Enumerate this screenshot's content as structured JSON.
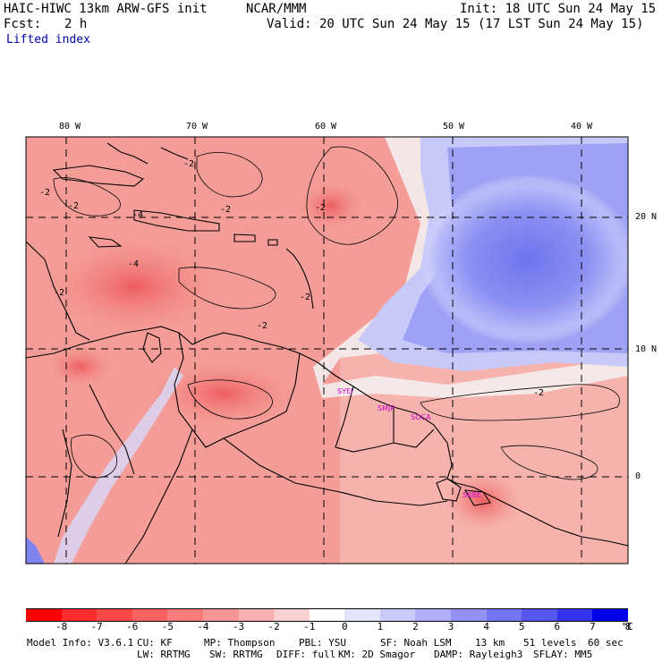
{
  "header": {
    "model": "HAIC-HIWC 13km ARW-GFS init",
    "org": "NCAR/MMM",
    "init": "Init: 18 UTC Sun 24 May 15",
    "fcst_label": "Fcst:",
    "fcst_value": "2 h",
    "valid": "Valid: 20 UTC Sun 24 May 15 (17 LST Sun 24 May 15)",
    "field": "Lifted index"
  },
  "axes": {
    "lon_ticks": [
      "80 W",
      "70 W",
      "60 W",
      "50 W",
      "40 W"
    ],
    "lat_ticks": [
      "20 N",
      "10 N",
      "0"
    ]
  },
  "stations": [
    "SYEJ",
    "SMJP",
    "SOCA",
    "SBBE"
  ],
  "contour_labels": [
    "-2",
    "-2",
    "-2",
    "-2",
    "-2",
    "-2",
    "-4",
    "-4",
    "-2",
    "-2",
    "-2"
  ],
  "colorbar": {
    "labels": [
      "-8",
      "-7",
      "-6",
      "-5",
      "-4",
      "-3",
      "-2",
      "-1",
      "0",
      "1",
      "2",
      "3",
      "4",
      "5",
      "6",
      "7",
      "8"
    ],
    "unit": "°C",
    "colors": [
      "#ff0000",
      "#fe2c2c",
      "#fd4848",
      "#fb6363",
      "#f97b7b",
      "#f89595",
      "#f8b0b0",
      "#fad0d0",
      "#ffffff",
      "#e4e4fc",
      "#c9c9fb",
      "#aeaefa",
      "#9191f7",
      "#7474f4",
      "#5656f1",
      "#3434ee",
      "#0000ea"
    ]
  },
  "footer": {
    "line1": [
      "Model Info: V3.6.1",
      "CU: KF",
      "MP: Thompson",
      "PBL: YSU",
      "SF: Noah LSM",
      "13 km",
      "51 levels",
      "60 sec"
    ],
    "line2": [
      "LW: RRTMG",
      "SW: RRTMG",
      "DIFF: full",
      "KM: 2D Smagor",
      "DAMP: Rayleigh3",
      "SFLAY: MM5"
    ]
  },
  "colors": {
    "map_warm": "#f49a95",
    "map_cool": "#8b8ef0"
  }
}
